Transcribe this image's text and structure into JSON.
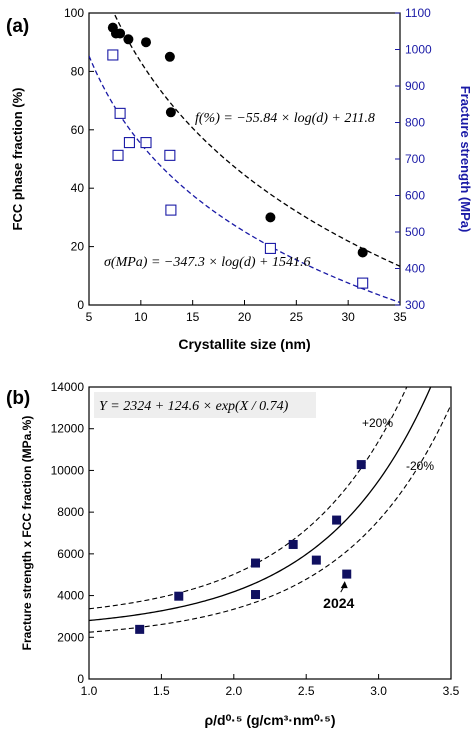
{
  "chart_data": [
    {
      "panel_label": "(a)",
      "type": "scatter",
      "xlabel": "Crystallite size (nm)",
      "ylabel": "FCC phase fraction (%)",
      "y2label": "Fracture strength (MPa)",
      "xlim": [
        5,
        35
      ],
      "ylim": [
        0,
        100
      ],
      "y2lim": [
        300,
        1100
      ],
      "x_ticks": [
        5,
        10,
        15,
        20,
        25,
        30,
        35
      ],
      "y_ticks": [
        0,
        20,
        40,
        60,
        80,
        100
      ],
      "y2_ticks": [
        300,
        400,
        500,
        600,
        700,
        800,
        900,
        1000,
        1100
      ],
      "y2_color": "#1a1aa6",
      "series": [
        {
          "marker": "filled-circle",
          "color": "#000000",
          "axis": "left",
          "x": [
            7.3,
            7.6,
            8.0,
            8.8,
            10.5,
            12.8,
            12.9,
            22.5,
            31.4
          ],
          "y": [
            95,
            93,
            93,
            91,
            90,
            85,
            66,
            30,
            18
          ]
        },
        {
          "marker": "open-square",
          "color": "#1a1aa6",
          "axis": "right",
          "x": [
            7.3,
            7.8,
            8.0,
            8.9,
            10.5,
            12.8,
            12.9,
            22.5,
            31.4
          ],
          "y": [
            985,
            710,
            825,
            745,
            745,
            710,
            560,
            455,
            360
          ]
        }
      ],
      "fits": [
        {
          "label": "f(%) = −55.84 × log(d) + 211.8",
          "color": "#000000",
          "axis": "left",
          "a": -55.84,
          "b": 211.8
        },
        {
          "label": "σ(MPa) = −347.3 × log(d) + 1541.6",
          "color": "#1a1aa6",
          "axis": "right",
          "a": -347.3,
          "b": 1541.6
        }
      ]
    },
    {
      "panel_label": "(b)",
      "type": "scatter",
      "xlabel": "ρ/d⁰·⁵ (g/cm³·nm⁰·⁵)",
      "ylabel": "Fracture strength x FCC fraction (MPa.%)",
      "xlim": [
        1.0,
        3.5
      ],
      "ylim": [
        0,
        14000
      ],
      "x_ticks": [
        "1.0",
        "1.5",
        "2.0",
        "2.5",
        "3.0",
        "3.5"
      ],
      "y_ticks": [
        0,
        2000,
        4000,
        6000,
        8000,
        10000,
        12000,
        14000
      ],
      "series": [
        {
          "marker": "filled-square",
          "color": "#101060",
          "x": [
            1.35,
            1.62,
            2.15,
            2.15,
            2.41,
            2.57,
            2.71,
            2.78,
            2.88
          ],
          "y": [
            2380,
            3970,
            5560,
            4050,
            6450,
            5700,
            7620,
            5030,
            10280
          ]
        }
      ],
      "fit": {
        "label": "Y = 2324 + 124.6 × exp(X / 0.74)",
        "y0": 2324,
        "A": 124.6,
        "t": 0.74
      },
      "bands": [
        {
          "label": "+20%",
          "factor": 1.2
        },
        {
          "label": "-20%",
          "factor": 0.8
        }
      ],
      "annotation": {
        "text": "2024",
        "x": 2.78,
        "y": 5030
      }
    }
  ]
}
